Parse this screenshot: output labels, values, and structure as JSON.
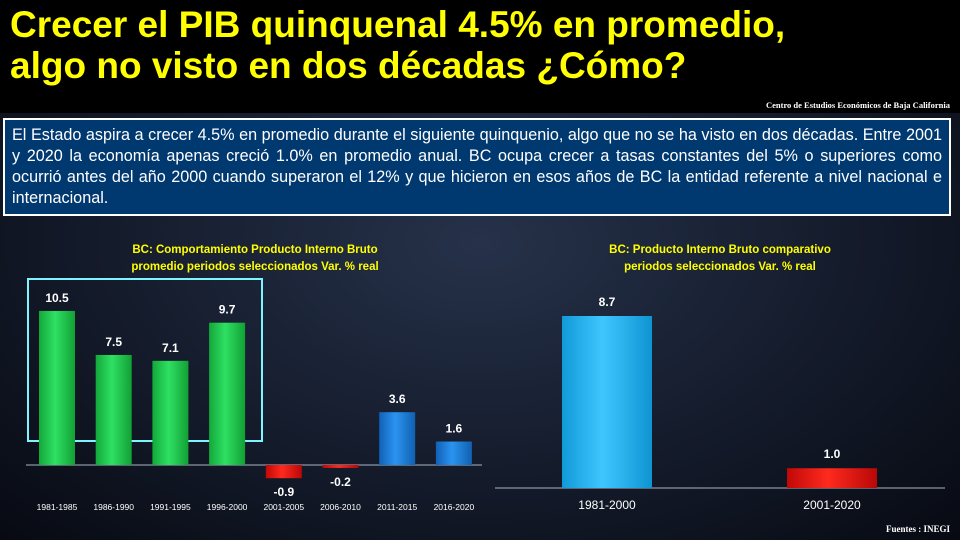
{
  "title": {
    "line1": "Crecer el PIB quinquenal 4.5% en promedio,",
    "line2": "algo no visto en dos décadas ¿Cómo?"
  },
  "source_top": "Centro de Estudios Económicos de Baja California",
  "info_text": "El Estado aspira a crecer 4.5% en promedio durante el siguiente quinquenio, algo que no se ha visto en dos décadas. Entre 2001 y 2020 la economía apenas creció 1.0% en promedio anual. BC ocupa crecer a tasas constantes del 5% o superiores como ocurrió antes del año 2000 cuando superaron el 12% y que hicieron en esos años de BC la entidad referente a nivel nacional e internacional.",
  "footer_source": "Fuentes : INEGI",
  "colors": {
    "positive_early": "#1ecb4e",
    "positive_late": "#1a7fe0",
    "negative": "#e81010",
    "single_blue": "#1fb3f5",
    "title": "#ffff00"
  },
  "chart_data": [
    {
      "type": "bar",
      "title_lines": [
        "BC: Comportamiento Producto Interno Bruto",
        "promedio periodos seleccionados Var. % real"
      ],
      "categories": [
        "1981-1985",
        "1986-1990",
        "1991-1995",
        "1996-2000",
        "2001-2005",
        "2006-2010",
        "2011-2015",
        "2016-2020"
      ],
      "values": [
        10.5,
        7.5,
        7.1,
        9.7,
        -0.9,
        -0.2,
        3.6,
        1.6
      ],
      "value_labels": [
        "10.5",
        "7.5",
        "7.1",
        "9.7",
        "-0.9",
        "-0.2",
        "3.6",
        "1.6"
      ],
      "ylim": [
        -1.5,
        12
      ],
      "highlight": {
        "from": 0,
        "to": 3
      }
    },
    {
      "type": "bar",
      "title_lines": [
        "BC: Producto Interno Bruto comparativo",
        "periodos seleccionados  Var. % real"
      ],
      "categories": [
        "1981-2000",
        "2001-2020"
      ],
      "values": [
        8.7,
        1.0
      ],
      "value_labels": [
        "8.7",
        "1.0"
      ],
      "ylim": [
        0,
        10
      ]
    }
  ]
}
